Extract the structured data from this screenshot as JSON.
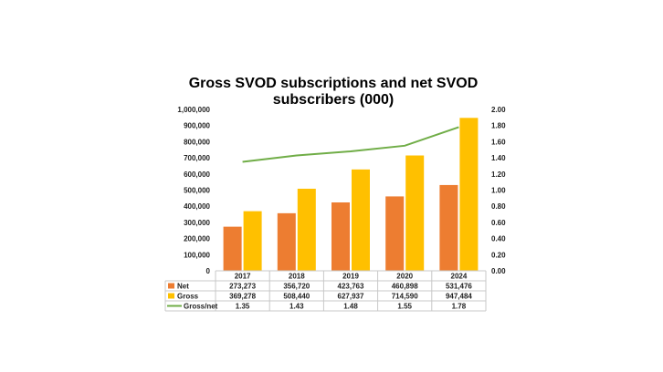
{
  "chart_data": {
    "type": "bar",
    "title_lines": [
      "Gross SVOD subscriptions and net SVOD",
      "subscribers (000)"
    ],
    "categories": [
      "2017",
      "2018",
      "2019",
      "2020",
      "2024"
    ],
    "series": [
      {
        "name": "Net",
        "kind": "bar",
        "axis": "left",
        "color": "#ED7D31",
        "values": [
          273273,
          356720,
          423763,
          460898,
          531476
        ],
        "labels": [
          "273,273",
          "356,720",
          "423,763",
          "460,898",
          "531,476"
        ]
      },
      {
        "name": "Gross",
        "kind": "bar",
        "axis": "left",
        "color": "#FFC000",
        "values": [
          369278,
          508440,
          627937,
          714590,
          947484
        ],
        "labels": [
          "369,278",
          "508,440",
          "627,937",
          "714,590",
          "947,484"
        ]
      },
      {
        "name": "Gross/net",
        "kind": "line",
        "axis": "right",
        "color": "#70AD47",
        "values": [
          1.35,
          1.43,
          1.48,
          1.55,
          1.78
        ],
        "labels": [
          "1.35",
          "1.43",
          "1.48",
          "1.55",
          "1.78"
        ]
      }
    ],
    "left_axis": {
      "ylim": [
        0,
        1000000
      ],
      "ticks": [
        0,
        100000,
        200000,
        300000,
        400000,
        500000,
        600000,
        700000,
        800000,
        900000,
        1000000
      ],
      "tick_labels": [
        "0",
        "100,000",
        "200,000",
        "300,000",
        "400,000",
        "500,000",
        "600,000",
        "700,000",
        "800,000",
        "900,000",
        "1,000,000"
      ]
    },
    "right_axis": {
      "ylim": [
        0,
        2
      ],
      "ticks": [
        0,
        0.2,
        0.4,
        0.6,
        0.8,
        1.0,
        1.2,
        1.4,
        1.6,
        1.8,
        2.0
      ],
      "tick_labels": [
        "0.00",
        "0.20",
        "0.40",
        "0.60",
        "0.80",
        "1.00",
        "1.20",
        "1.40",
        "1.60",
        "1.80",
        "2.00"
      ]
    },
    "grid": false,
    "legend": "data-table"
  }
}
